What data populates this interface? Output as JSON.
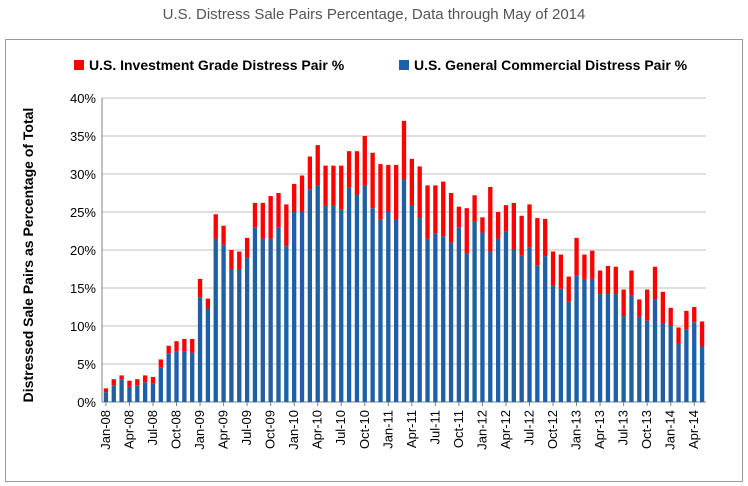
{
  "chart_data": {
    "type": "bar",
    "stacked": true,
    "title": "U.S. Distress Sale Pairs Percentage, Data through May of 2014",
    "xlabel": "",
    "ylabel": "Distressed Sale Pairs as Percentage of Total",
    "ylim": [
      0,
      40
    ],
    "yticks": [
      "0%",
      "5%",
      "10%",
      "15%",
      "20%",
      "25%",
      "30%",
      "35%",
      "40%"
    ],
    "grid": true,
    "legend_position": "top",
    "x_tick_labels": [
      "Jan-08",
      "Apr-08",
      "Jul-08",
      "Oct-08",
      "Jan-09",
      "Apr-09",
      "Jul-09",
      "Oct-09",
      "Jan-10",
      "Apr-10",
      "Jul-10",
      "Oct-10",
      "Jan-11",
      "Apr-11",
      "Jul-11",
      "Oct-11",
      "Jan-12",
      "Apr-12",
      "Jul-12",
      "Oct-12",
      "Jan-13",
      "Apr-13",
      "Jul-13",
      "Oct-13",
      "Jan-14",
      "Apr-14"
    ],
    "x_tick_every": 3,
    "series": [
      {
        "name": "U.S. General Commercial Distress Pair %",
        "color": "#1f5fa6",
        "values": [
          1.3,
          2.2,
          3.0,
          2.0,
          2.2,
          2.6,
          2.4,
          4.5,
          6.4,
          6.7,
          6.7,
          6.5,
          13.8,
          12.3,
          21.5,
          20.7,
          17.5,
          17.5,
          19.0,
          23.0,
          21.5,
          21.5,
          23.0,
          20.5,
          25.0,
          25.0,
          28.0,
          28.5,
          25.8,
          25.8,
          25.3,
          28.2,
          27.3,
          28.5,
          25.5,
          24.0,
          25.0,
          24.0,
          29.2,
          25.8,
          24.2,
          21.5,
          22.2,
          21.8,
          21.0,
          23.0,
          19.5,
          23.7,
          22.3,
          19.8,
          21.5,
          22.4,
          20.0,
          19.3,
          20.3,
          18.0,
          19.2,
          15.3,
          14.9,
          13.2,
          16.6,
          16.2,
          16.2,
          14.2,
          14.2,
          14.2,
          11.3,
          14.0,
          11.2,
          10.7,
          13.5,
          10.4,
          10.0,
          7.7,
          9.5,
          10.5,
          7.3
        ]
      },
      {
        "name": "U.S. Investment Grade Distress Pair %",
        "color": "#ff0000",
        "values": [
          0.5,
          0.8,
          0.5,
          0.8,
          0.8,
          0.9,
          0.9,
          1.1,
          1.0,
          1.3,
          1.6,
          1.8,
          2.4,
          1.3,
          3.2,
          2.5,
          2.5,
          2.3,
          2.6,
          3.2,
          4.7,
          5.6,
          4.5,
          5.5,
          3.7,
          4.8,
          4.3,
          5.3,
          5.3,
          5.3,
          5.8,
          4.8,
          5.7,
          6.5,
          7.3,
          7.3,
          6.2,
          7.2,
          7.8,
          6.2,
          6.8,
          7.0,
          6.3,
          7.2,
          6.5,
          2.7,
          6.0,
          3.5,
          2.0,
          8.5,
          3.5,
          3.5,
          6.2,
          5.2,
          5.7,
          6.2,
          4.9,
          4.5,
          4.5,
          3.3,
          5.0,
          3.2,
          3.7,
          3.1,
          3.7,
          3.6,
          3.5,
          3.3,
          2.3,
          4.1,
          4.3,
          4.1,
          2.4,
          2.1,
          2.5,
          2.0,
          3.3
        ]
      }
    ]
  }
}
